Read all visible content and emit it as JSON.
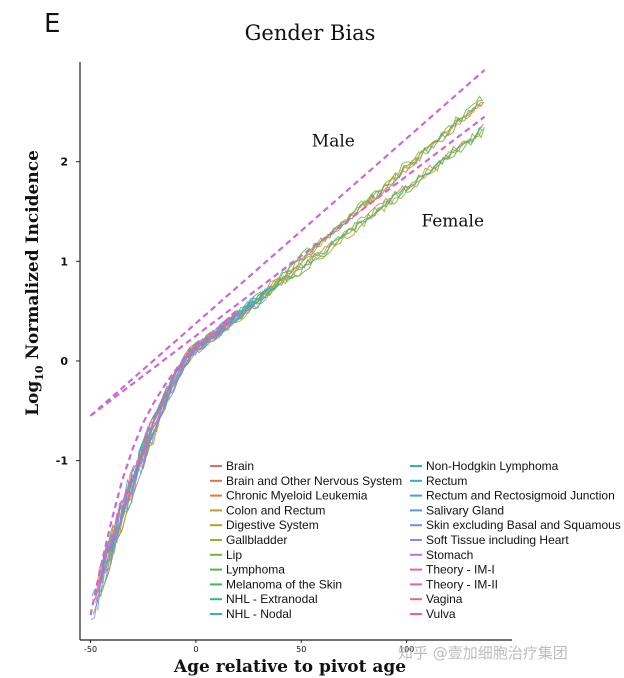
{
  "panel_letter": "E",
  "watermark": "知乎 @壹加细胞治疗集团",
  "chart_data": {
    "type": "line",
    "title": "Gender Bias",
    "xlabel": "Age relative to pivot age",
    "ylabel_main": "Log",
    "ylabel_sub": "10",
    "ylabel_rest": " Normalized Incidence",
    "xlim": [
      -55,
      150
    ],
    "ylim": [
      -2.8,
      3.0
    ],
    "xticks": [
      -50,
      0,
      50,
      100
    ],
    "xtick_labels": [
      "-50",
      "0",
      "50",
      "100"
    ],
    "yticks": [
      -1,
      0,
      1,
      2
    ],
    "ytick_labels": [
      "-1",
      "0",
      "1",
      "2"
    ],
    "grid": false,
    "legend_position": "bottom-right",
    "annotations": [
      {
        "text": "Male",
        "x": 55,
        "y": 2.15
      },
      {
        "text": "Female",
        "x": 107,
        "y": 1.35
      }
    ],
    "theory_lines": [
      {
        "name": "Male theory",
        "color": "#c86ad8",
        "x": [
          -50,
          137
        ],
        "y": [
          -0.55,
          2.92
        ]
      },
      {
        "name": "Female theory",
        "color": "#c86ad8",
        "x": [
          -50,
          137
        ],
        "y": [
          -0.55,
          2.45
        ]
      },
      {
        "name": "Theory curve",
        "color": "#c86ad8",
        "x": [
          -50,
          -45,
          -40,
          -35,
          -30,
          -25,
          -20,
          -15,
          -10,
          -5,
          0,
          5,
          10,
          15,
          20
        ],
        "y": [
          -2.55,
          -2.05,
          -1.6,
          -1.2,
          -0.88,
          -0.62,
          -0.42,
          -0.25,
          -0.1,
          0.02,
          0.12,
          0.22,
          0.32,
          0.42,
          0.52
        ]
      }
    ],
    "legend": [
      {
        "name": "Brain",
        "color": "#e07060"
      },
      {
        "name": "Brain and Other Nervous System",
        "color": "#e0744e"
      },
      {
        "name": "Chronic Myeloid Leukemia",
        "color": "#d9852e"
      },
      {
        "name": "Colon and Rectum",
        "color": "#c99a28"
      },
      {
        "name": "Digestive System",
        "color": "#b3a429"
      },
      {
        "name": "Gallbladder",
        "color": "#9aac2c"
      },
      {
        "name": "Lip",
        "color": "#7db431"
      },
      {
        "name": "Lymphoma",
        "color": "#58b847"
      },
      {
        "name": "Melanoma of the Skin",
        "color": "#3fb867"
      },
      {
        "name": "NHL - Extranodal",
        "color": "#34b88a"
      },
      {
        "name": "NHL - Nodal",
        "color": "#2fb4a6"
      },
      {
        "name": "Non-Hodgkin Lymphoma",
        "color": "#2fb0bd"
      },
      {
        "name": "Rectum",
        "color": "#35aacd"
      },
      {
        "name": "Rectum and Rectosigmoid Junction",
        "color": "#42a0dc"
      },
      {
        "name": "Salivary Gland",
        "color": "#5d95e6"
      },
      {
        "name": "Skin excluding Basal and Squamous",
        "color": "#7f88ea"
      },
      {
        "name": "Soft Tissue including Heart",
        "color": "#a07de6"
      },
      {
        "name": "Stomach",
        "color": "#bd72dd"
      },
      {
        "name": "Theory - IM-I",
        "color": "#d368cf"
      },
      {
        "name": "Theory - IM-II",
        "color": "#e062bb"
      },
      {
        "name": "Vagina",
        "color": "#e962a0"
      },
      {
        "name": "Vulva",
        "color": "#ec6783"
      }
    ]
  }
}
